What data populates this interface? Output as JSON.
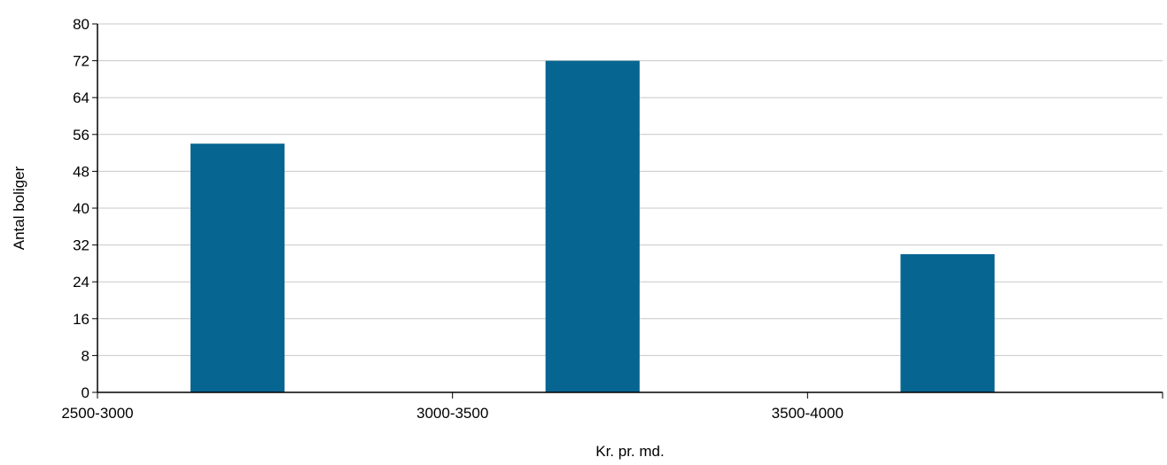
{
  "chart_data": {
    "type": "bar",
    "title": "",
    "xlabel": "Kr. pr. md.",
    "ylabel": "Antal boliger",
    "categories": [
      "2500-3000",
      "3000-3500",
      "3500-4000"
    ],
    "values": [
      54,
      72,
      30
    ],
    "ylim": [
      0,
      80
    ],
    "yticks": [
      0,
      8,
      16,
      24,
      32,
      40,
      48,
      56,
      64,
      72,
      80
    ],
    "grid": true,
    "legend": "none",
    "colors": {
      "bar": "#076591",
      "grid": "#c8c8c8",
      "axis": "#000000"
    }
  }
}
